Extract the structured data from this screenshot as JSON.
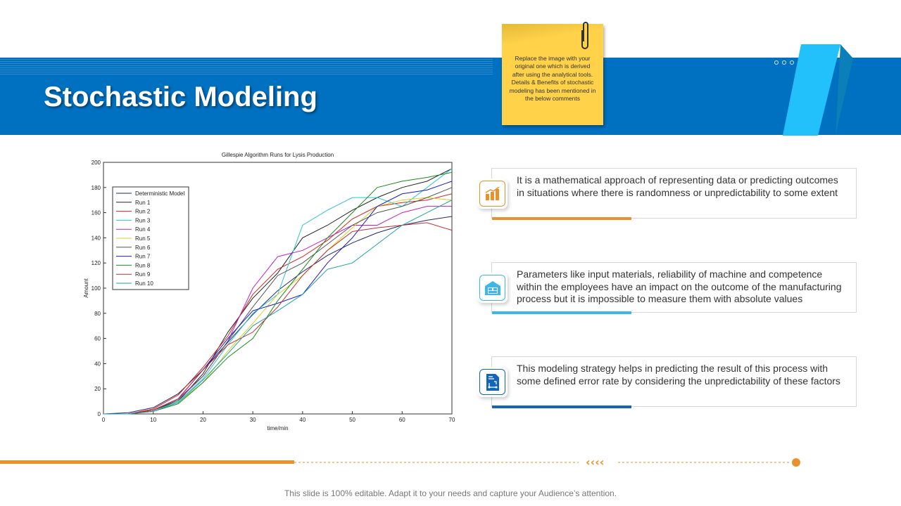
{
  "slide": {
    "title": "Stochastic Modeling",
    "footer": "This slide is 100% editable. Adapt it to your needs and capture your Audience’s attention."
  },
  "note": {
    "text": "Replace the image with your original one which is derived after using the analytical tools. Details & Benefits of stochastic modeling has been mentioned in the below comments"
  },
  "colors": {
    "band": "#0070c0",
    "ribbon": "#22c1fb",
    "note": "#ffd24a",
    "orange": "#e8922e",
    "sky": "#3bb8e8",
    "navy": "#1466b4"
  },
  "cards": [
    {
      "icon": "bar-chart-growth-icon",
      "text": "It is a mathematical approach of representing data or predicting outcomes in situations where there is randomness or unpredictability to some extent",
      "color": "#e8922e"
    },
    {
      "icon": "warehouse-icon",
      "text": "Parameters like input materials, reliability of machine and competence within the employees have an impact on the outcome of the manufacturing process but it is impossible to measure them with absolute values",
      "color": "#3bb8e8"
    },
    {
      "icon": "process-document-icon",
      "text": "This modeling strategy helps in predicting the result of this process with some defined error rate by considering the unpredictability of these factors",
      "color": "#1466b4"
    }
  ],
  "chart_data": {
    "type": "line",
    "title": "Gillespie Algorithm Runs for Lysis Production",
    "xlabel": "time/min",
    "ylabel": "Amount",
    "xlim": [
      0,
      70
    ],
    "ylim": [
      0,
      200
    ],
    "xticks": [
      0,
      10,
      20,
      30,
      40,
      50,
      60,
      70
    ],
    "yticks": [
      0,
      20,
      40,
      60,
      80,
      100,
      120,
      140,
      160,
      180,
      200
    ],
    "legend": "top-left",
    "grid": false,
    "x": [
      0,
      5,
      10,
      15,
      20,
      25,
      30,
      35,
      40,
      45,
      50,
      55,
      60,
      65,
      70
    ],
    "series": [
      {
        "name": "Deterministic Model",
        "color": "#1f2a6b",
        "values": [
          0,
          1,
          5,
          16,
          35,
          57,
          79,
          98,
          113,
          126,
          136,
          144,
          150,
          154,
          157
        ]
      },
      {
        "name": "Run 1",
        "color": "#222222",
        "values": [
          0,
          0,
          3,
          10,
          32,
          65,
          92,
          112,
          140,
          150,
          162,
          172,
          180,
          185,
          195
        ]
      },
      {
        "name": "Run 2",
        "color": "#d42020",
        "values": [
          0,
          0,
          4,
          15,
          37,
          62,
          95,
          115,
          125,
          138,
          155,
          165,
          168,
          170,
          175
        ]
      },
      {
        "name": "Run 3",
        "color": "#2ec4d6",
        "values": [
          0,
          0,
          2,
          10,
          28,
          55,
          80,
          95,
          150,
          162,
          172,
          172,
          165,
          180,
          195
        ]
      },
      {
        "name": "Run 4",
        "color": "#c020c0",
        "values": [
          0,
          0,
          3,
          12,
          30,
          58,
          100,
          125,
          130,
          140,
          150,
          150,
          160,
          165,
          165
        ]
      },
      {
        "name": "Run 5",
        "color": "#d8d020",
        "values": [
          0,
          0,
          2,
          9,
          25,
          50,
          72,
          95,
          110,
          130,
          148,
          165,
          170,
          172,
          170
        ]
      },
      {
        "name": "Run 6",
        "color": "#555555",
        "values": [
          0,
          0,
          3,
          11,
          30,
          58,
          85,
          110,
          120,
          135,
          150,
          160,
          165,
          172,
          180
        ]
      },
      {
        "name": "Run 7",
        "color": "#1a1ad0",
        "values": [
          0,
          0,
          3,
          12,
          35,
          60,
          82,
          88,
          95,
          120,
          140,
          165,
          175,
          178,
          185
        ]
      },
      {
        "name": "Run 8",
        "color": "#1a8a1a",
        "values": [
          0,
          0,
          2,
          8,
          25,
          45,
          60,
          90,
          115,
          140,
          160,
          180,
          185,
          188,
          192
        ]
      },
      {
        "name": "Run 9",
        "color": "#c03030",
        "values": [
          0,
          0,
          3,
          12,
          35,
          55,
          65,
          85,
          110,
          130,
          145,
          148,
          150,
          152,
          146
        ]
      },
      {
        "name": "Run 10",
        "color": "#20a0a8",
        "values": [
          0,
          0,
          2,
          9,
          27,
          48,
          70,
          82,
          95,
          115,
          120,
          135,
          150,
          160,
          170
        ]
      }
    ]
  }
}
